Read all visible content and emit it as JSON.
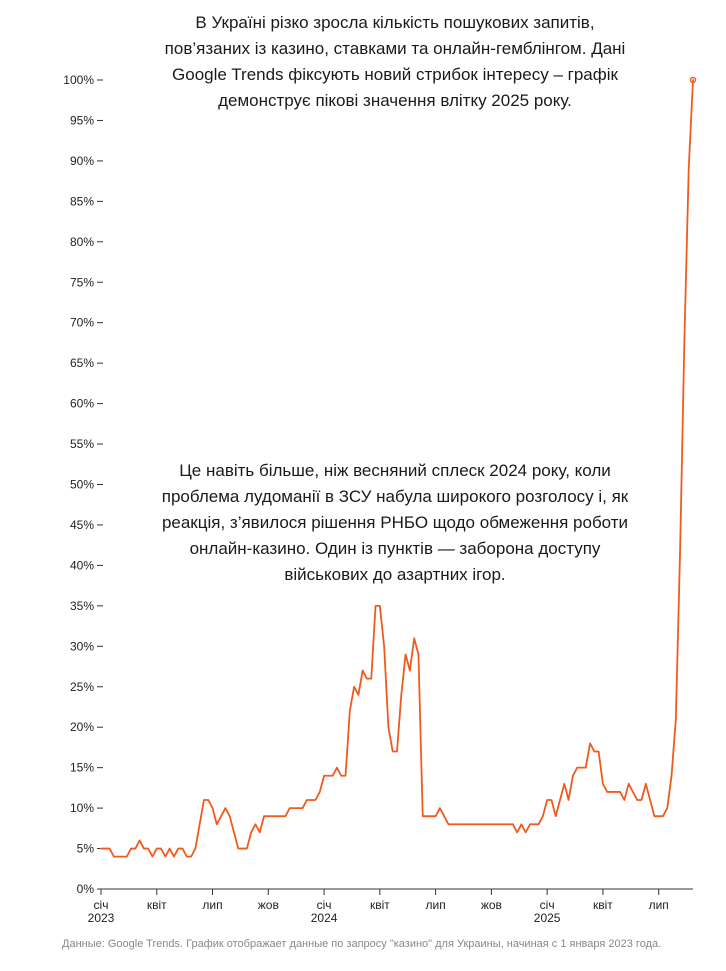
{
  "annotations": {
    "top": "В Україні різко зросла кількість пошукових запитів, пов’язаних із казино, ставками та онлайн-гемблінгом. Дані Google Trends фіксують новий стрибок інтересу – графік демонструє пікові значення влітку 2025 року.",
    "middle": "Це навіть більше, ніж весняний сплеск 2024 року, коли проблема лудоманії в ЗСУ набула широкого розголосу і, як реакція, з’явилося рішення РНБО щодо обмеження роботи онлайн-казино. Один із пунктів — заборона доступу військових до азартних ігор."
  },
  "source_note": "Данные: Google Trends. График отображает данные по запросу \"казино\" для Украины, начиная с 1 января 2023 года.",
  "colors": {
    "line": "#f05a1e",
    "axis": "#333333",
    "text": "#222222",
    "note": "#888888"
  },
  "chart_data": {
    "type": "line",
    "ylim": [
      0,
      100
    ],
    "y_unit": "%",
    "y_ticks": [
      0,
      5,
      10,
      15,
      20,
      25,
      30,
      35,
      40,
      45,
      50,
      55,
      60,
      65,
      70,
      75,
      80,
      85,
      90,
      95,
      100
    ],
    "x_ticks": [
      {
        "x": 0,
        "label": "січ",
        "year": "2023"
      },
      {
        "x": 13,
        "label": "квіт",
        "year": ""
      },
      {
        "x": 26,
        "label": "лип",
        "year": ""
      },
      {
        "x": 39,
        "label": "жов",
        "year": ""
      },
      {
        "x": 52,
        "label": "січ",
        "year": "2024"
      },
      {
        "x": 65,
        "label": "квіт",
        "year": ""
      },
      {
        "x": 78,
        "label": "лип",
        "year": ""
      },
      {
        "x": 91,
        "label": "жов",
        "year": ""
      },
      {
        "x": 104,
        "label": "січ",
        "year": "2025"
      },
      {
        "x": 117,
        "label": "квіт",
        "year": ""
      },
      {
        "x": 130,
        "label": "лип",
        "year": ""
      }
    ],
    "x_range": [
      0,
      138
    ],
    "series": [
      {
        "values": [
          5,
          5,
          5,
          4,
          4,
          4,
          4,
          5,
          5,
          6,
          5,
          5,
          4,
          5,
          5,
          4,
          5,
          4,
          5,
          5,
          4,
          4,
          5,
          8,
          11,
          11,
          10,
          8,
          9,
          10,
          9,
          7,
          5,
          5,
          5,
          7,
          8,
          7,
          9,
          9,
          9,
          9,
          9,
          9,
          10,
          10,
          10,
          10,
          11,
          11,
          11,
          12,
          14,
          14,
          14,
          15,
          14,
          14,
          22,
          25,
          24,
          27,
          26,
          26,
          35,
          35,
          30,
          20,
          17,
          17,
          24,
          29,
          27,
          31,
          29,
          9,
          9,
          9,
          9,
          10,
          9,
          8,
          8,
          8,
          8,
          8,
          8,
          8,
          8,
          8,
          8,
          8,
          8,
          8,
          8,
          8,
          8,
          7,
          8,
          7,
          8,
          8,
          8,
          9,
          11,
          11,
          9,
          11,
          13,
          11,
          14,
          15,
          15,
          15,
          18,
          17,
          17,
          13,
          12,
          12,
          12,
          12,
          11,
          13,
          12,
          11,
          11,
          13,
          11,
          9,
          9,
          9,
          10,
          14,
          21,
          42,
          68,
          89,
          100
        ]
      }
    ]
  }
}
